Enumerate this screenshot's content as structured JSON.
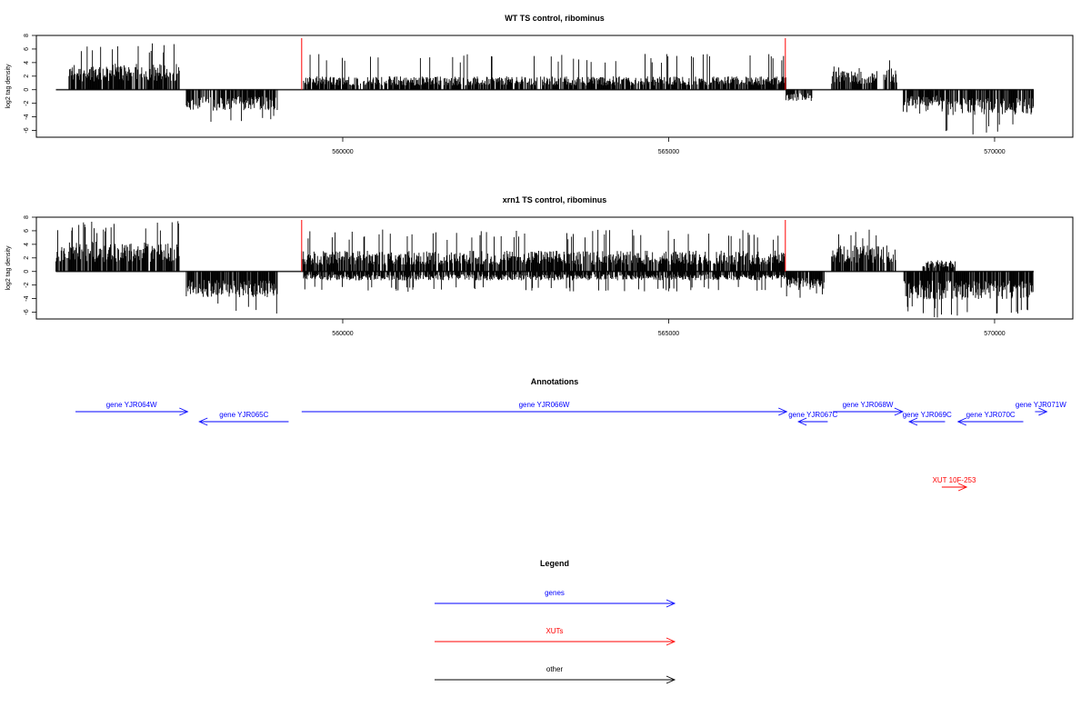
{
  "chart_data": [
    {
      "type": "bar",
      "title": "WT TS control, ribominus",
      "ylabel": "log2 tag density",
      "ylim": [
        -7,
        8
      ],
      "yticks": [
        -6,
        -4,
        -2,
        0,
        2,
        4,
        6,
        8
      ],
      "xlim": [
        555300,
        571200
      ],
      "xticks": [
        560000,
        565000,
        570000
      ],
      "grid": false,
      "region": [
        555600,
        570600
      ],
      "forward_strand": [
        {
          "start": 555800,
          "end": 557500,
          "level": 3.5,
          "peak": 7.0
        },
        {
          "start": 559400,
          "end": 566800,
          "level": 1.8,
          "peak": 5.3
        },
        {
          "start": 567500,
          "end": 568200,
          "level": 2.5,
          "peak": 4.2
        },
        {
          "start": 568300,
          "end": 568500,
          "level": 3.0,
          "peak": 5.4
        }
      ],
      "reverse_strand": [
        {
          "start": 557600,
          "end": 559000,
          "level": 2.8,
          "peak": 5.0
        },
        {
          "start": 566800,
          "end": 567200,
          "level": 1.5,
          "peak": 3.2
        },
        {
          "start": 568600,
          "end": 569200,
          "level": 2.2,
          "peak": 3.6
        },
        {
          "start": 569200,
          "end": 570600,
          "level": 3.5,
          "peak": 6.8
        }
      ],
      "markers": [
        {
          "x": 559370,
          "y": 7.6
        },
        {
          "x": 566790,
          "y": 7.6
        }
      ]
    },
    {
      "type": "bar",
      "title": "xrn1 TS control, ribominus",
      "ylabel": "log2 tag density",
      "ylim": [
        -7,
        8
      ],
      "yticks": [
        -6,
        -4,
        -2,
        0,
        2,
        4,
        6,
        8
      ],
      "xlim": [
        555300,
        571200
      ],
      "xticks": [
        560000,
        565000,
        570000
      ],
      "grid": false,
      "region": [
        555600,
        570600
      ],
      "forward_strand": [
        {
          "start": 555600,
          "end": 557500,
          "level": 4.0,
          "peak": 7.5
        },
        {
          "start": 559370,
          "end": 566800,
          "level": 2.8,
          "peak": 6.2
        },
        {
          "start": 567500,
          "end": 568500,
          "level": 3.5,
          "peak": 6.2
        },
        {
          "start": 568900,
          "end": 569400,
          "level": 1.5,
          "peak": 2.8
        }
      ],
      "reverse_strand": [
        {
          "start": 557600,
          "end": 559000,
          "level": 3.5,
          "peak": 6.2
        },
        {
          "start": 559400,
          "end": 566800,
          "level": 1.2,
          "peak": 3.0
        },
        {
          "start": 566800,
          "end": 567400,
          "level": 2.5,
          "peak": 4.2
        },
        {
          "start": 568600,
          "end": 570600,
          "level": 3.8,
          "peak": 6.8
        }
      ],
      "markers": [
        {
          "x": 559370,
          "y": 7.6
        },
        {
          "x": 566790,
          "y": 7.6
        }
      ]
    }
  ],
  "annotations": {
    "title": "Annotations",
    "features": [
      {
        "label": "gene YJR064W",
        "start": 555900,
        "end": 557620,
        "strand": "+",
        "row": 0,
        "category": "genes"
      },
      {
        "label": "gene YJR065C",
        "start": 557800,
        "end": 559170,
        "strand": "-",
        "row": 1,
        "category": "genes"
      },
      {
        "label": "gene YJR066W",
        "start": 559370,
        "end": 566810,
        "strand": "+",
        "row": 0,
        "category": "genes"
      },
      {
        "label": "gene YJR067C",
        "start": 566990,
        "end": 567440,
        "strand": "-",
        "row": 1,
        "category": "genes"
      },
      {
        "label": "gene YJR068W",
        "start": 567520,
        "end": 568590,
        "strand": "+",
        "row": 0,
        "category": "genes"
      },
      {
        "label": "gene YJR069C",
        "start": 568690,
        "end": 569240,
        "strand": "-",
        "row": 1,
        "category": "genes"
      },
      {
        "label": "gene YJR070C",
        "start": 569440,
        "end": 570440,
        "strand": "-",
        "row": 1,
        "category": "genes"
      },
      {
        "label": "gene YJR071W",
        "start": 570620,
        "end": 570800,
        "strand": "+",
        "row": 0,
        "category": "genes"
      },
      {
        "label": "XUT 10F-253",
        "start": 569190,
        "end": 569570,
        "strand": "+",
        "row": 2,
        "category": "XUTs"
      }
    ]
  },
  "legend": {
    "title": "Legend",
    "items": [
      {
        "label": "genes",
        "color": "#0000ff"
      },
      {
        "label": "XUTs",
        "color": "#ff0000"
      },
      {
        "label": "other",
        "color": "#000000"
      }
    ]
  },
  "colors": {
    "genes": "#0000ff",
    "XUTs": "#ff0000",
    "other": "#000000",
    "signal": "#000000",
    "marker": "#ff0000"
  }
}
